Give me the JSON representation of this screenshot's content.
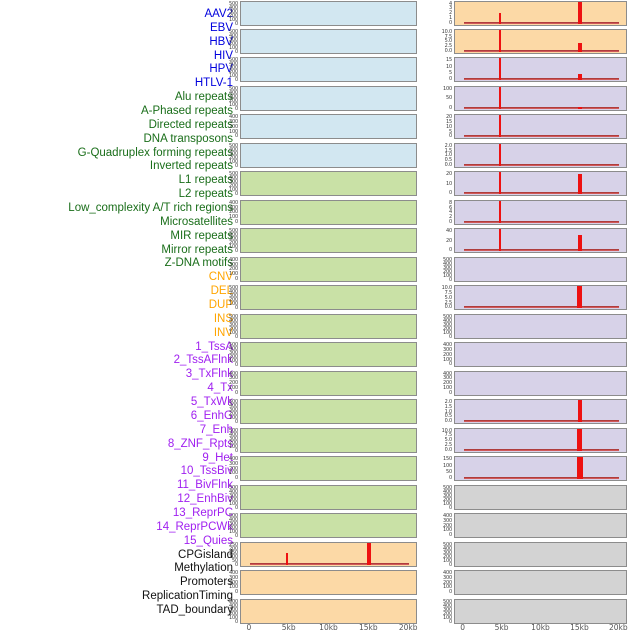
{
  "chart_data": {
    "type": "bar",
    "layout_hint": "small-multiples, 2 columns x 22 rows, shared x axis, grid off",
    "x": {
      "ticks": [
        "0",
        "5kb",
        "10kb",
        "15kb",
        "20kb"
      ],
      "positions_kb": [
        0,
        5,
        10,
        15,
        20
      ],
      "range_kb": [
        0,
        20
      ]
    },
    "spike_color": "#ee1111",
    "baseline_color": "#b84444",
    "groups": {
      "virus": {
        "label_color": "#0000dd",
        "bg": "#d2e7f1"
      },
      "repeat": {
        "label_color": "#1a6e1a",
        "bg": "#c9e1a6"
      },
      "sv": {
        "label_color": "#ffa500",
        "bg": "#fcd9a6"
      },
      "chromhmm": {
        "label_color": "#a020f0",
        "bg": "#d7d2e8"
      },
      "other": {
        "label_color": "#111111",
        "bg": "#d3d3d3"
      }
    },
    "columns": [
      {
        "name": "left",
        "tracks": [
          {
            "label": "AAV2",
            "group": "virus",
            "yticks": [
              "500",
              "400",
              "300",
              "200",
              "100",
              "0"
            ],
            "baseline": false,
            "spikes": []
          },
          {
            "label": "EBV",
            "group": "virus",
            "yticks": [
              "500",
              "400",
              "300",
              "200",
              "100",
              "0"
            ],
            "baseline": false,
            "spikes": []
          },
          {
            "label": "HBV",
            "group": "virus",
            "yticks": [
              "500",
              "400",
              "300",
              "200",
              "100",
              "0"
            ],
            "baseline": false,
            "spikes": []
          },
          {
            "label": "HIV",
            "group": "virus",
            "yticks": [
              "500",
              "400",
              "300",
              "200",
              "100",
              "0"
            ],
            "baseline": false,
            "spikes": []
          },
          {
            "label": "HPV",
            "group": "virus",
            "yticks": [
              "400",
              "300",
              "200",
              "100",
              "0"
            ],
            "baseline": false,
            "spikes": []
          },
          {
            "label": "HTLV-1",
            "group": "virus",
            "yticks": [
              "500",
              "400",
              "300",
              "200",
              "100",
              "0"
            ],
            "baseline": false,
            "spikes": []
          },
          {
            "label": "Alu repeats",
            "group": "repeat",
            "yticks": [
              "500",
              "400",
              "300",
              "200",
              "100",
              "0"
            ],
            "baseline": false,
            "spikes": []
          },
          {
            "label": "A-Phased repeats",
            "group": "repeat",
            "yticks": [
              "400",
              "300",
              "200",
              "100",
              "0"
            ],
            "baseline": false,
            "spikes": []
          },
          {
            "label": "Directed repeats",
            "group": "repeat",
            "yticks": [
              "500",
              "400",
              "300",
              "200",
              "100",
              "0"
            ],
            "baseline": false,
            "spikes": []
          },
          {
            "label": "DNA transposons",
            "group": "repeat",
            "yticks": [
              "400",
              "300",
              "200",
              "100",
              "0"
            ],
            "baseline": false,
            "spikes": []
          },
          {
            "label": "G-Quadruplex forming repeats",
            "group": "repeat",
            "yticks": [
              "500",
              "400",
              "300",
              "200",
              "100",
              "0"
            ],
            "baseline": false,
            "spikes": []
          },
          {
            "label": "Inverted repeats",
            "group": "repeat",
            "yticks": [
              "500",
              "400",
              "300",
              "200",
              "100",
              "0"
            ],
            "baseline": false,
            "spikes": []
          },
          {
            "label": "L1 repeats",
            "group": "repeat",
            "yticks": [
              "500",
              "400",
              "300",
              "200",
              "100",
              "0"
            ],
            "baseline": false,
            "spikes": []
          },
          {
            "label": "L2 repeats",
            "group": "repeat",
            "yticks": [
              "400",
              "300",
              "200",
              "100",
              "0"
            ],
            "baseline": false,
            "spikes": []
          },
          {
            "label": "Low_complexity A/T rich regions",
            "group": "repeat",
            "yticks": [
              "500",
              "400",
              "300",
              "200",
              "100",
              "0"
            ],
            "baseline": false,
            "spikes": []
          },
          {
            "label": "Microsatellites",
            "group": "repeat",
            "yticks": [
              "500",
              "400",
              "300",
              "200",
              "100",
              "0"
            ],
            "baseline": false,
            "spikes": []
          },
          {
            "label": "MIR repeats",
            "group": "repeat",
            "yticks": [
              "400",
              "300",
              "200",
              "100",
              "0"
            ],
            "baseline": false,
            "spikes": []
          },
          {
            "label": "Mirror repeats",
            "group": "repeat",
            "yticks": [
              "500",
              "400",
              "300",
              "200",
              "100",
              "0"
            ],
            "baseline": false,
            "spikes": []
          },
          {
            "label": "Z-DNA motifs",
            "group": "repeat",
            "yticks": [
              "500",
              "400",
              "300",
              "200",
              "100",
              "0"
            ],
            "baseline": false,
            "spikes": []
          },
          {
            "label": "CNV",
            "group": "sv",
            "yticks": [
              "250",
              "200",
              "150",
              "100",
              "50",
              "0"
            ],
            "baseline": true,
            "spikes": [
              {
                "x_kb": 4.7,
                "value": 140,
                "h": 0.55,
                "w": 2
              },
              {
                "x_kb": 14.9,
                "value": 250,
                "h": 1.0,
                "w": 4
              }
            ]
          },
          {
            "label": "DEL",
            "group": "sv",
            "yticks": [
              "400",
              "300",
              "200",
              "100",
              "0"
            ],
            "baseline": false,
            "spikes": []
          },
          {
            "label": "DUP",
            "group": "sv",
            "yticks": [
              "500",
              "400",
              "300",
              "200",
              "100",
              "0"
            ],
            "baseline": false,
            "spikes": []
          }
        ]
      },
      {
        "name": "right",
        "tracks": [
          {
            "label": "INS",
            "group": "sv",
            "yticks": [
              "4",
              "3",
              "2",
              "1",
              "0"
            ],
            "baseline": true,
            "spikes": [
              {
                "x_kb": 4.7,
                "value": 2.2,
                "h": 0.5,
                "w": 2
              },
              {
                "x_kb": 14.9,
                "value": 4.5,
                "h": 1.0,
                "w": 4
              }
            ]
          },
          {
            "label": "INV",
            "group": "sv",
            "yticks": [
              "10.0",
              "7.5",
              "5.0",
              "2.5",
              "0.0"
            ],
            "baseline": true,
            "spikes": [
              {
                "x_kb": 4.7,
                "value": 10,
                "h": 1.0,
                "w": 2
              },
              {
                "x_kb": 14.9,
                "value": 4,
                "h": 0.42,
                "w": 4
              }
            ]
          },
          {
            "label": "1_TssA",
            "group": "chromhmm",
            "yticks": [
              "15",
              "10",
              "5",
              "0"
            ],
            "baseline": true,
            "spikes": [
              {
                "x_kb": 4.7,
                "value": 15,
                "h": 1.0,
                "w": 2
              },
              {
                "x_kb": 14.9,
                "value": 4,
                "h": 0.27,
                "w": 4
              }
            ]
          },
          {
            "label": "2_TssAFlnk",
            "group": "chromhmm",
            "yticks": [
              "100",
              "50",
              "0"
            ],
            "baseline": true,
            "spikes": [
              {
                "x_kb": 4.7,
                "value": 110,
                "h": 1.0,
                "w": 2
              },
              {
                "x_kb": 14.9,
                "value": 10,
                "h": 0.1,
                "w": 4
              }
            ]
          },
          {
            "label": "3_TxFlnk",
            "group": "chromhmm",
            "yticks": [
              "20",
              "15",
              "10",
              "5",
              "0"
            ],
            "baseline": true,
            "spikes": [
              {
                "x_kb": 4.7,
                "value": 22,
                "h": 1.0,
                "w": 2
              }
            ]
          },
          {
            "label": "4_Tx",
            "group": "chromhmm",
            "yticks": [
              "2.0",
              "1.5",
              "1.0",
              "0.5",
              "0.0"
            ],
            "baseline": true,
            "spikes": [
              {
                "x_kb": 4.7,
                "value": 2.2,
                "h": 1.0,
                "w": 2
              }
            ]
          },
          {
            "label": "5_TxWk",
            "group": "chromhmm",
            "yticks": [
              "20",
              "10",
              "0"
            ],
            "baseline": true,
            "spikes": [
              {
                "x_kb": 4.7,
                "value": 25,
                "h": 1.0,
                "w": 2
              },
              {
                "x_kb": 14.9,
                "value": 23,
                "h": 0.92,
                "w": 4
              }
            ]
          },
          {
            "label": "6_EnhG",
            "group": "chromhmm",
            "yticks": [
              "8",
              "6",
              "4",
              "2",
              "0"
            ],
            "baseline": true,
            "spikes": [
              {
                "x_kb": 4.7,
                "value": 9,
                "h": 1.0,
                "w": 2
              }
            ]
          },
          {
            "label": "7_Enh",
            "group": "chromhmm",
            "yticks": [
              "40",
              "20",
              "0"
            ],
            "baseline": true,
            "spikes": [
              {
                "x_kb": 4.7,
                "value": 45,
                "h": 1.0,
                "w": 2
              },
              {
                "x_kb": 14.9,
                "value": 30,
                "h": 0.72,
                "w": 4
              }
            ]
          },
          {
            "label": "8_ZNF_Rpts",
            "group": "chromhmm",
            "yticks": [
              "500",
              "400",
              "300",
              "200",
              "100",
              "0"
            ],
            "baseline": false,
            "spikes": []
          },
          {
            "label": "9_Het",
            "group": "chromhmm",
            "yticks": [
              "10.0",
              "7.5",
              "5.0",
              "2.5",
              "0.0"
            ],
            "baseline": true,
            "spikes": [
              {
                "x_kb": 14.9,
                "value": 11,
                "h": 1.0,
                "w": 5
              }
            ]
          },
          {
            "label": "10_TssBiv",
            "group": "chromhmm",
            "yticks": [
              "500",
              "400",
              "300",
              "200",
              "100",
              "0"
            ],
            "baseline": false,
            "spikes": []
          },
          {
            "label": "11_BivFlnk",
            "group": "chromhmm",
            "yticks": [
              "400",
              "300",
              "200",
              "100",
              "0"
            ],
            "baseline": false,
            "spikes": []
          },
          {
            "label": "12_EnhBiv",
            "group": "chromhmm",
            "yticks": [
              "400",
              "300",
              "200",
              "100",
              "0"
            ],
            "baseline": false,
            "spikes": []
          },
          {
            "label": "13_ReprPC",
            "group": "chromhmm",
            "yticks": [
              "2.0",
              "1.5",
              "1.0",
              "0.5",
              "0.0"
            ],
            "baseline": true,
            "spikes": [
              {
                "x_kb": 14.9,
                "value": 2.2,
                "h": 1.0,
                "w": 4
              }
            ]
          },
          {
            "label": "14_ReprPCWk",
            "group": "chromhmm",
            "yticks": [
              "10.0",
              "7.5",
              "5.0",
              "2.5",
              "0.0"
            ],
            "baseline": true,
            "spikes": [
              {
                "x_kb": 14.9,
                "value": 11,
                "h": 1.0,
                "w": 5
              }
            ]
          },
          {
            "label": "15_Quies",
            "group": "chromhmm",
            "yticks": [
              "150",
              "100",
              "50",
              "0"
            ],
            "baseline": true,
            "spikes": [
              {
                "x_kb": 14.9,
                "value": 160,
                "h": 1.0,
                "w": 6
              }
            ]
          },
          {
            "label": "CPGisland",
            "group": "other",
            "yticks": [
              "500",
              "400",
              "300",
              "200",
              "100",
              "0"
            ],
            "baseline": false,
            "spikes": []
          },
          {
            "label": "Methylation",
            "group": "other",
            "yticks": [
              "400",
              "300",
              "200",
              "100",
              "0"
            ],
            "baseline": false,
            "spikes": []
          },
          {
            "label": "Promoters",
            "group": "other",
            "yticks": [
              "500",
              "400",
              "300",
              "200",
              "100",
              "0"
            ],
            "baseline": false,
            "spikes": []
          },
          {
            "label": "ReplicationTiming",
            "group": "other",
            "yticks": [
              "400",
              "300",
              "200",
              "100",
              "0"
            ],
            "baseline": false,
            "spikes": []
          },
          {
            "label": "TAD_boundary",
            "group": "other",
            "yticks": [
              "500",
              "400",
              "300",
              "200",
              "100",
              "0"
            ],
            "baseline": false,
            "spikes": []
          }
        ]
      }
    ]
  }
}
